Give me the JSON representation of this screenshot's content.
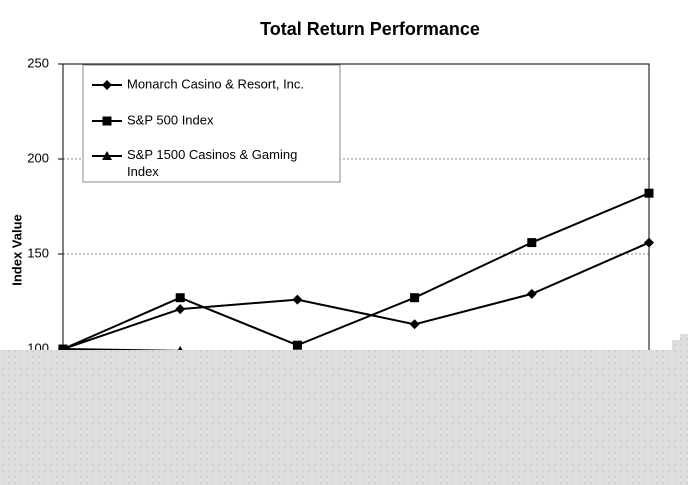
{
  "chart_data": {
    "type": "line",
    "title": "Total Return Performance",
    "y_label": "Index Value",
    "categories": [
      null,
      null,
      null,
      null,
      null,
      null
    ],
    "series": [
      {
        "name": "Monarch Casino & Resort, Inc.",
        "color": "#000000",
        "marker": "diamond",
        "values": [
          100,
          121,
          126,
          113,
          129,
          156
        ]
      },
      {
        "name": "S&P 500 Index",
        "color": "#000000",
        "marker": "square",
        "values": [
          100,
          127,
          102,
          127,
          156,
          182
        ]
      },
      {
        "name": "S&P 1500 Casinos & Gaming Index",
        "color": "#000000",
        "marker": "triangle",
        "values": [
          100,
          99,
          null,
          null,
          null,
          null
        ]
      }
    ],
    "ylim": [
      100,
      250
    ],
    "yticks": [
      100,
      150,
      200,
      250
    ],
    "grid": true,
    "legend": "top-left"
  }
}
